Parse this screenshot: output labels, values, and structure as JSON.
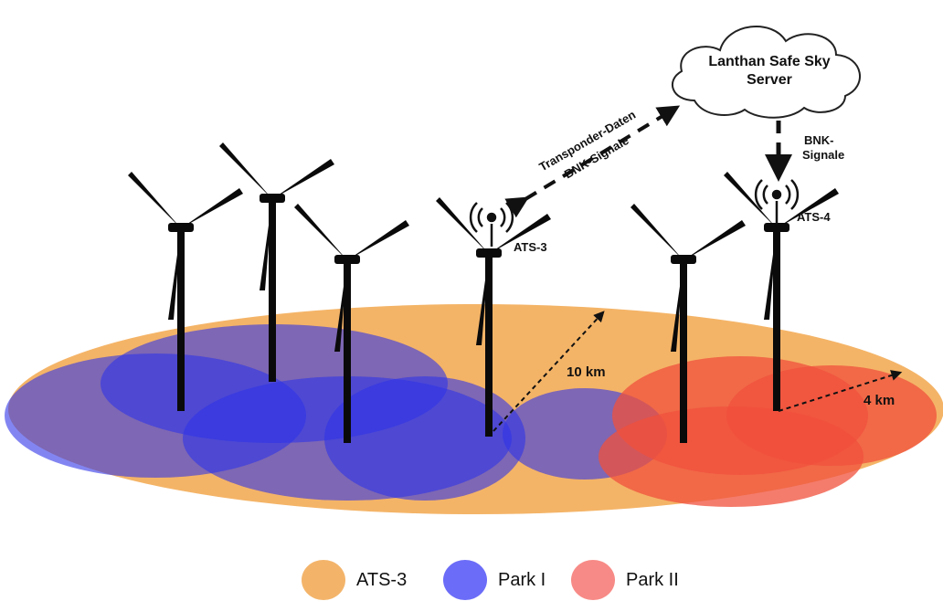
{
  "cloud": {
    "line1": "Lanthan Safe Sky",
    "line2": "Server"
  },
  "arrows": {
    "transponder_data": "Transponder-Daten",
    "bnk_signals_diag": "BNK-Signale",
    "bnk_signals_vertical_1": "BNK-",
    "bnk_signals_vertical_2": "Signale"
  },
  "stations": {
    "ats3": "ATS-3",
    "ats4": "ATS-4"
  },
  "ranges": {
    "ats3_radius": "10 km",
    "ats4_radius": "4 km"
  },
  "legend": [
    {
      "label": "ATS-3",
      "color": "#f3b46a"
    },
    {
      "label": "Park I",
      "color": "#6b6cf7"
    },
    {
      "label": "Park II",
      "color": "#f78a86"
    }
  ],
  "colors": {
    "ats3_area": "#f2a74c",
    "park1_area": "#2f34e8",
    "park2_area": "#f0503c",
    "turbine": "#0a0a0a"
  }
}
